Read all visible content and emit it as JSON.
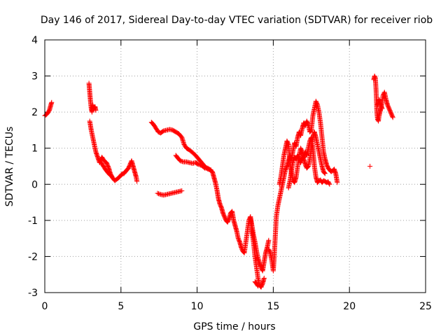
{
  "chart_data": {
    "type": "scatter",
    "title": "Day 146 of 2017, Sidereal Day-to-day VTEC variation (SDTVAR) for receiver riob",
    "xlabel": "GPS time / hours",
    "ylabel": "SDTVAR / TECUs",
    "xlim": [
      0,
      25
    ],
    "ylim": [
      -3,
      4
    ],
    "xticks": [
      0,
      5,
      10,
      15,
      20,
      25
    ],
    "yticks": [
      -3,
      -2,
      -1,
      0,
      1,
      2,
      3,
      4
    ],
    "grid": true,
    "marker": "+",
    "color": "#ff0000",
    "series": [
      {
        "name": "SDTVAR",
        "segments": [
          [
            [
              0.0,
              1.9
            ],
            [
              0.1,
              1.93
            ],
            [
              0.2,
              1.98
            ],
            [
              0.3,
              2.05
            ],
            [
              0.4,
              2.2
            ],
            [
              0.45,
              2.27
            ]
          ],
          [
            [
              2.9,
              2.8
            ],
            [
              2.95,
              2.55
            ],
            [
              3.0,
              2.3
            ],
            [
              3.05,
              2.1
            ],
            [
              3.1,
              2.0
            ],
            [
              3.15,
              2.2
            ],
            [
              3.2,
              2.1
            ],
            [
              3.3,
              2.15
            ],
            [
              3.35,
              2.05
            ]
          ],
          [
            [
              2.95,
              1.75
            ],
            [
              3.05,
              1.5
            ],
            [
              3.15,
              1.3
            ],
            [
              3.25,
              1.1
            ],
            [
              3.35,
              0.9
            ],
            [
              3.5,
              0.72
            ],
            [
              3.6,
              0.6
            ],
            [
              3.75,
              0.75
            ],
            [
              3.9,
              0.65
            ],
            [
              4.05,
              0.6
            ],
            [
              4.2,
              0.45
            ],
            [
              4.3,
              0.3
            ],
            [
              4.45,
              0.18
            ],
            [
              4.6,
              0.1
            ],
            [
              4.75,
              0.15
            ],
            [
              4.9,
              0.2
            ],
            [
              5.05,
              0.28
            ],
            [
              5.2,
              0.3
            ],
            [
              5.35,
              0.38
            ],
            [
              5.5,
              0.45
            ],
            [
              5.6,
              0.55
            ],
            [
              5.7,
              0.65
            ],
            [
              5.8,
              0.5
            ],
            [
              5.9,
              0.35
            ],
            [
              6.0,
              0.2
            ],
            [
              6.05,
              0.08
            ]
          ],
          [
            [
              3.7,
              0.6
            ],
            [
              3.85,
              0.5
            ],
            [
              4.0,
              0.4
            ],
            [
              4.15,
              0.32
            ],
            [
              4.3,
              0.25
            ]
          ],
          [
            [
              7.0,
              1.72
            ],
            [
              7.15,
              1.65
            ],
            [
              7.3,
              1.55
            ],
            [
              7.45,
              1.45
            ],
            [
              7.6,
              1.42
            ],
            [
              7.8,
              1.48
            ],
            [
              8.0,
              1.5
            ],
            [
              8.2,
              1.52
            ],
            [
              8.4,
              1.5
            ],
            [
              8.6,
              1.45
            ],
            [
              8.8,
              1.4
            ],
            [
              9.0,
              1.3
            ],
            [
              9.15,
              1.1
            ],
            [
              9.3,
              1.0
            ],
            [
              9.5,
              0.95
            ],
            [
              9.7,
              0.88
            ],
            [
              9.9,
              0.8
            ],
            [
              10.1,
              0.7
            ],
            [
              10.3,
              0.6
            ],
            [
              10.5,
              0.5
            ],
            [
              10.7,
              0.42
            ],
            [
              10.9,
              0.4
            ]
          ],
          [
            [
              8.6,
              0.8
            ],
            [
              8.75,
              0.72
            ],
            [
              8.9,
              0.65
            ],
            [
              9.1,
              0.62
            ],
            [
              9.3,
              0.62
            ],
            [
              9.5,
              0.6
            ],
            [
              9.7,
              0.58
            ],
            [
              9.9,
              0.6
            ],
            [
              10.1,
              0.55
            ],
            [
              10.3,
              0.52
            ],
            [
              10.5,
              0.45
            ],
            [
              10.7,
              0.45
            ],
            [
              10.85,
              0.4
            ],
            [
              11.0,
              0.35
            ],
            [
              11.1,
              0.2
            ],
            [
              11.2,
              0.05
            ],
            [
              11.3,
              -0.15
            ],
            [
              11.4,
              -0.4
            ],
            [
              11.5,
              -0.55
            ],
            [
              11.6,
              -0.65
            ],
            [
              11.7,
              -0.8
            ],
            [
              11.8,
              -0.9
            ],
            [
              11.9,
              -1.0
            ],
            [
              12.0,
              -1.05
            ],
            [
              12.1,
              -0.95
            ],
            [
              12.2,
              -0.8
            ],
            [
              12.3,
              -0.75
            ],
            [
              12.4,
              -1.0
            ],
            [
              12.5,
              -1.15
            ],
            [
              12.6,
              -1.3
            ],
            [
              12.7,
              -1.5
            ],
            [
              12.8,
              -1.6
            ],
            [
              12.9,
              -1.75
            ],
            [
              13.0,
              -1.85
            ],
            [
              13.1,
              -1.9
            ],
            [
              13.2,
              -1.6
            ],
            [
              13.3,
              -1.3
            ],
            [
              13.4,
              -1.0
            ],
            [
              13.5,
              -0.9
            ],
            [
              13.6,
              -1.15
            ],
            [
              13.7,
              -1.4
            ],
            [
              13.8,
              -1.6
            ],
            [
              13.9,
              -1.85
            ],
            [
              14.0,
              -2.05
            ],
            [
              14.1,
              -2.2
            ],
            [
              14.2,
              -2.3
            ],
            [
              14.3,
              -2.4
            ],
            [
              14.4,
              -2.15
            ],
            [
              14.5,
              -1.9
            ],
            [
              14.6,
              -1.75
            ],
            [
              14.7,
              -1.55
            ]
          ],
          [
            [
              7.4,
              -0.25
            ],
            [
              7.6,
              -0.28
            ],
            [
              7.8,
              -0.3
            ],
            [
              8.0,
              -0.28
            ],
            [
              8.2,
              -0.26
            ],
            [
              8.4,
              -0.24
            ],
            [
              8.6,
              -0.22
            ],
            [
              8.8,
              -0.2
            ],
            [
              9.0,
              -0.18
            ]
          ],
          [
            [
              13.5,
              -0.9
            ],
            [
              13.6,
              -1.3
            ],
            [
              13.7,
              -1.6
            ],
            [
              13.8,
              -2.0
            ],
            [
              13.9,
              -2.3
            ],
            [
              14.0,
              -2.6
            ],
            [
              14.1,
              -2.8
            ],
            [
              14.2,
              -2.85
            ],
            [
              14.3,
              -2.75
            ],
            [
              14.4,
              -2.6
            ]
          ],
          [
            [
              13.8,
              -2.7
            ],
            [
              13.9,
              -2.75
            ],
            [
              14.0,
              -2.82
            ]
          ],
          [
            [
              14.7,
              -1.8
            ],
            [
              14.8,
              -1.9
            ],
            [
              14.9,
              -2.1
            ],
            [
              15.0,
              -2.4
            ],
            [
              15.05,
              -2.1
            ],
            [
              15.1,
              -1.7
            ],
            [
              15.15,
              -1.3
            ],
            [
              15.2,
              -0.9
            ],
            [
              15.3,
              -0.6
            ],
            [
              15.4,
              -0.4
            ],
            [
              15.5,
              -0.2
            ],
            [
              15.6,
              0.0
            ],
            [
              15.7,
              0.2
            ],
            [
              15.8,
              0.4
            ],
            [
              15.9,
              0.5
            ],
            [
              16.0,
              0.65
            ],
            [
              16.1,
              0.8
            ],
            [
              16.2,
              0.7
            ],
            [
              16.3,
              0.95
            ],
            [
              16.4,
              1.15
            ],
            [
              16.5,
              1.05
            ],
            [
              16.6,
              1.3
            ],
            [
              16.7,
              1.45
            ],
            [
              16.8,
              1.35
            ],
            [
              16.9,
              1.55
            ],
            [
              17.0,
              1.7
            ],
            [
              17.1,
              1.62
            ],
            [
              17.2,
              1.75
            ],
            [
              17.3,
              1.65
            ],
            [
              17.4,
              1.45
            ],
            [
              17.5,
              1.5
            ],
            [
              17.6,
              1.9
            ],
            [
              17.7,
              2.1
            ],
            [
              17.8,
              2.3
            ],
            [
              17.9,
              2.2
            ],
            [
              18.0,
              2.0
            ],
            [
              18.1,
              1.7
            ],
            [
              18.2,
              1.3
            ],
            [
              18.3,
              0.9
            ],
            [
              18.4,
              0.7
            ],
            [
              18.5,
              0.55
            ],
            [
              18.6,
              0.45
            ],
            [
              18.7,
              0.4
            ],
            [
              18.8,
              0.35
            ],
            [
              18.9,
              0.38
            ],
            [
              19.0,
              0.42
            ],
            [
              19.1,
              0.3
            ],
            [
              19.2,
              0.05
            ]
          ],
          [
            [
              15.4,
              0.0
            ],
            [
              15.5,
              0.2
            ],
            [
              15.6,
              0.5
            ],
            [
              15.7,
              0.8
            ],
            [
              15.8,
              1.0
            ],
            [
              15.9,
              1.2
            ],
            [
              16.0,
              1.1
            ],
            [
              16.1,
              0.6
            ],
            [
              16.2,
              0.3
            ],
            [
              16.3,
              0.1
            ],
            [
              16.4,
              0.05
            ],
            [
              16.5,
              0.2
            ],
            [
              16.6,
              0.5
            ],
            [
              16.7,
              0.8
            ],
            [
              16.8,
              1.0
            ],
            [
              16.9,
              0.9
            ],
            [
              17.0,
              0.7
            ],
            [
              17.1,
              0.55
            ],
            [
              17.2,
              0.45
            ],
            [
              17.3,
              0.5
            ],
            [
              17.4,
              0.7
            ],
            [
              17.5,
              1.0
            ],
            [
              17.6,
              1.3
            ],
            [
              17.7,
              1.45
            ],
            [
              17.8,
              1.3
            ],
            [
              17.9,
              1.1
            ],
            [
              18.0,
              0.9
            ],
            [
              18.1,
              0.7
            ],
            [
              18.2,
              0.5
            ],
            [
              18.3,
              0.35
            ],
            [
              18.4,
              0.3
            ]
          ],
          [
            [
              16.0,
              -0.1
            ],
            [
              16.1,
              0.1
            ],
            [
              16.2,
              0.4
            ],
            [
              16.3,
              0.65
            ],
            [
              16.4,
              0.75
            ],
            [
              16.5,
              0.7
            ],
            [
              16.6,
              0.8
            ],
            [
              16.7,
              0.7
            ],
            [
              16.8,
              0.6
            ],
            [
              16.9,
              0.7
            ],
            [
              17.0,
              0.75
            ],
            [
              17.1,
              0.9
            ],
            [
              17.2,
              0.8
            ],
            [
              17.3,
              1.0
            ],
            [
              17.4,
              1.2
            ],
            [
              17.5,
              1.3
            ],
            [
              17.6,
              1.0
            ],
            [
              17.7,
              0.5
            ],
            [
              17.8,
              0.2
            ],
            [
              17.9,
              0.05
            ],
            [
              18.0,
              0.1
            ],
            [
              18.1,
              0.12
            ],
            [
              18.2,
              0.05
            ],
            [
              18.3,
              0.1
            ],
            [
              18.4,
              0.08
            ],
            [
              18.5,
              0.05
            ],
            [
              18.6,
              0.07
            ],
            [
              18.7,
              0.0
            ]
          ],
          [
            [
              21.35,
              0.5
            ]
          ],
          [
            [
              21.6,
              2.9
            ],
            [
              21.65,
              3.0
            ],
            [
              21.7,
              2.95
            ],
            [
              21.75,
              2.6
            ],
            [
              21.8,
              2.0
            ],
            [
              21.85,
              1.8
            ],
            [
              21.9,
              1.75
            ],
            [
              21.95,
              1.9
            ],
            [
              22.0,
              2.0
            ],
            [
              22.1,
              2.15
            ],
            [
              22.2,
              2.45
            ],
            [
              22.3,
              2.55
            ],
            [
              22.4,
              2.35
            ],
            [
              22.5,
              2.2
            ],
            [
              22.6,
              2.1
            ],
            [
              22.7,
              2.0
            ],
            [
              22.8,
              1.9
            ],
            [
              22.85,
              1.85
            ]
          ],
          [
            [
              21.85,
              2.2
            ],
            [
              21.95,
              2.35
            ],
            [
              22.05,
              2.2
            ],
            [
              22.15,
              2.1
            ]
          ]
        ]
      }
    ]
  }
}
